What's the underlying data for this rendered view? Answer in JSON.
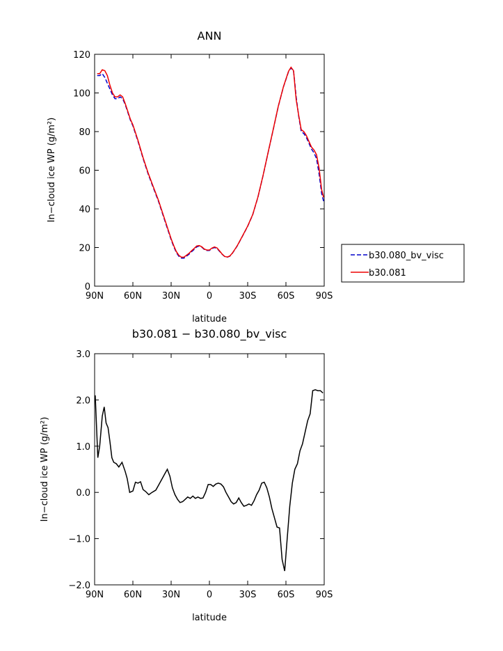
{
  "chart_data": [
    {
      "type": "line",
      "title": "ANN",
      "xlabel": "latitude",
      "ylabel": "In−cloud ice WP (g/m²)",
      "xlim": [
        90,
        -90
      ],
      "ylim": [
        0,
        120
      ],
      "x_ticks": [
        90,
        60,
        30,
        0,
        -30,
        -60,
        -90
      ],
      "x_tick_labels": [
        "90N",
        "60N",
        "30N",
        "0",
        "30S",
        "60S",
        "90S"
      ],
      "y_ticks": [
        0,
        20,
        40,
        60,
        80,
        100,
        120
      ],
      "y_tick_labels": [
        "0",
        "20",
        "40",
        "60",
        "80",
        "100",
        "120"
      ],
      "legend_placement": "right",
      "series": [
        {
          "name": "b30.080_bv_visc",
          "color": "#0000cc",
          "dash": "dashed",
          "x": [
            88,
            86,
            84,
            82,
            80,
            78,
            76,
            74,
            72,
            70,
            68,
            66,
            64,
            62,
            60,
            56,
            52,
            48,
            44,
            40,
            36,
            32,
            30,
            28,
            26,
            24,
            22,
            20,
            18,
            16,
            14,
            12,
            10,
            8,
            6,
            4,
            2,
            0,
            -2,
            -4,
            -6,
            -8,
            -10,
            -12,
            -14,
            -16,
            -18,
            -20,
            -22,
            -24,
            -26,
            -30,
            -34,
            -38,
            -42,
            -46,
            -50,
            -54,
            -58,
            -62,
            -64,
            -66,
            -67,
            -68,
            -70,
            -72,
            -74,
            -76,
            -78,
            -80,
            -82,
            -84,
            -86,
            -88,
            -89.5
          ],
          "values": [
            109,
            109,
            110,
            108,
            105,
            102,
            99,
            97,
            97,
            98,
            97,
            94,
            90,
            86,
            83,
            75,
            66,
            58,
            51,
            44,
            36,
            28,
            24,
            20.5,
            17.5,
            15.5,
            14.5,
            14.5,
            15.5,
            16.5,
            17.8,
            19,
            20.3,
            20.8,
            20.2,
            19,
            18.5,
            18.5,
            19.5,
            20,
            19.5,
            18,
            16.5,
            15.3,
            15,
            15.5,
            17,
            19,
            21,
            23.5,
            26,
            31,
            37,
            46,
            57,
            69,
            81,
            93,
            103,
            111,
            113,
            111,
            105,
            98,
            88,
            80,
            79,
            77,
            74,
            71,
            69,
            66,
            58,
            48,
            44
          ]
        },
        {
          "name": "b30.081",
          "color": "#ee0000",
          "dash": "solid",
          "x": [
            88,
            86,
            84,
            82,
            80,
            78,
            76,
            74,
            72,
            70,
            68,
            66,
            64,
            62,
            60,
            56,
            52,
            48,
            44,
            40,
            36,
            32,
            30,
            28,
            26,
            24,
            22,
            20,
            18,
            16,
            14,
            12,
            10,
            8,
            6,
            4,
            2,
            0,
            -2,
            -4,
            -6,
            -8,
            -10,
            -12,
            -14,
            -16,
            -18,
            -20,
            -22,
            -24,
            -26,
            -30,
            -34,
            -38,
            -42,
            -46,
            -50,
            -54,
            -58,
            -62,
            -64,
            -66,
            -67,
            -68,
            -70,
            -72,
            -74,
            -76,
            -78,
            -80,
            -82,
            -84,
            -86,
            -88,
            -89.5
          ],
          "values": [
            110,
            110,
            112,
            111.5,
            109,
            104,
            100,
            98,
            98,
            99,
            98,
            94.5,
            90.5,
            86.5,
            83.5,
            75.5,
            66.5,
            58.5,
            51.5,
            44.5,
            36.5,
            28.5,
            24.5,
            21,
            18,
            16,
            15,
            15,
            16,
            17,
            18.3,
            19.5,
            20.8,
            21,
            20.4,
            19.2,
            18.7,
            18.7,
            19.7,
            20.3,
            19.8,
            18.2,
            16.6,
            15.4,
            15.1,
            15.6,
            17.1,
            19.1,
            21.1,
            23.6,
            26.1,
            31.1,
            37.1,
            46.1,
            57.1,
            69.1,
            81.1,
            93.1,
            103.1,
            111.2,
            113.3,
            111.5,
            104,
            96.5,
            88.5,
            81,
            80,
            78,
            75,
            72,
            70.5,
            68,
            61,
            50,
            46
          ]
        }
      ]
    },
    {
      "type": "line",
      "title": "b30.081 − b30.080_bv_visc",
      "xlabel": "latitude",
      "ylabel": "In−cloud ice WP (g/m²)",
      "xlim": [
        90,
        -90
      ],
      "ylim": [
        -2,
        3
      ],
      "x_ticks": [
        90,
        60,
        30,
        0,
        -30,
        -60,
        -90
      ],
      "x_tick_labels": [
        "90N",
        "60N",
        "30N",
        "0",
        "30S",
        "60S",
        "90S"
      ],
      "y_ticks": [
        -2,
        -1,
        0,
        1,
        2,
        3
      ],
      "y_tick_labels": [
        "−2.0",
        "−1.0",
        "0.0",
        "1.0",
        "2.0",
        "3.0"
      ],
      "series": [
        {
          "color": "#000000",
          "dash": "solid",
          "x": [
            89.5,
            87.5,
            86,
            84,
            82.5,
            81,
            79.5,
            78,
            76.5,
            75,
            73,
            71,
            68.5,
            66,
            64.5,
            62.5,
            60,
            58,
            56,
            54,
            52,
            50,
            47.5,
            45,
            42,
            40,
            37,
            35,
            33,
            31,
            29,
            27,
            25,
            23,
            21,
            19,
            17,
            15,
            13,
            11,
            9,
            7,
            5,
            3,
            1,
            -1,
            -3,
            -5,
            -7,
            -9,
            -11,
            -13,
            -15,
            -17,
            -19,
            -21,
            -23,
            -25,
            -27,
            -29,
            -31,
            -33,
            -35,
            -37,
            -39,
            -41,
            -43,
            -45,
            -47,
            -49,
            -51,
            -53,
            -55,
            -57,
            -59,
            -61,
            -63,
            -65,
            -67,
            -69,
            -71,
            -73,
            -75,
            -77,
            -79,
            -81,
            -83,
            -85,
            -87,
            -89
          ],
          "values": [
            2.1,
            0.75,
            1.0,
            1.65,
            1.85,
            1.5,
            1.4,
            1.1,
            0.75,
            0.65,
            0.62,
            0.55,
            0.65,
            0.45,
            0.3,
            0.0,
            0.03,
            0.22,
            0.2,
            0.23,
            0.06,
            0.02,
            -0.05,
            0.0,
            0.05,
            0.15,
            0.3,
            0.4,
            0.5,
            0.35,
            0.1,
            -0.05,
            -0.15,
            -0.22,
            -0.2,
            -0.15,
            -0.1,
            -0.13,
            -0.08,
            -0.13,
            -0.1,
            -0.13,
            -0.12,
            0.0,
            0.17,
            0.17,
            0.13,
            0.18,
            0.2,
            0.18,
            0.12,
            0.0,
            -0.1,
            -0.2,
            -0.25,
            -0.22,
            -0.12,
            -0.22,
            -0.3,
            -0.28,
            -0.25,
            -0.28,
            -0.18,
            -0.05,
            0.05,
            0.2,
            0.22,
            0.1,
            -0.1,
            -0.35,
            -0.55,
            -0.75,
            -0.77,
            -1.45,
            -1.7,
            -1.0,
            -0.3,
            0.2,
            0.5,
            0.62,
            0.9,
            1.05,
            1.3,
            1.55,
            1.7,
            2.2,
            2.22,
            2.2,
            2.2,
            2.15
          ]
        }
      ]
    }
  ]
}
